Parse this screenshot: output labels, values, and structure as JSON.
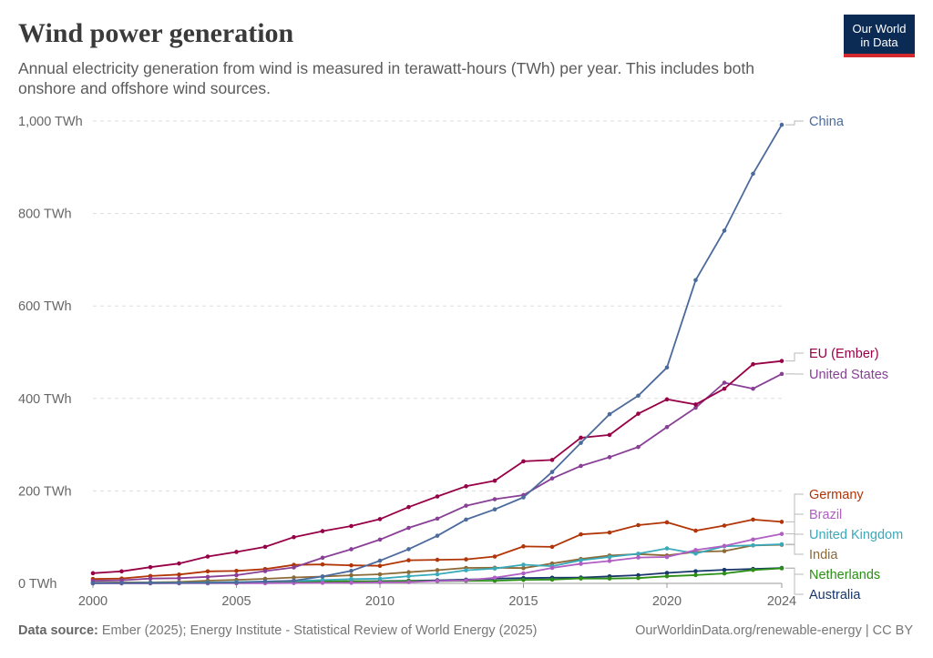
{
  "header": {
    "title": "Wind power generation",
    "subtitle": "Annual electricity generation from wind is measured in terawatt-hours (TWh) per year. This includes both onshore and offshore wind sources.",
    "logo_line1": "Our World",
    "logo_line2": "in Data"
  },
  "footer": {
    "source_label": "Data source:",
    "source_text": "Ember (2025); Energy Institute - Statistical Review of World Energy (2025)",
    "link": "OurWorldinData.org/renewable-energy | CC BY"
  },
  "chart_data": {
    "type": "line",
    "title": "Wind power generation",
    "xlabel": "",
    "ylabel": "TWh",
    "xlim": [
      2000,
      2024
    ],
    "ylim": [
      0,
      1000
    ],
    "y_ticks": [
      0,
      200,
      400,
      600,
      800,
      1000
    ],
    "y_tick_labels": [
      "0 TWh",
      "200 TWh",
      "400 TWh",
      "600 TWh",
      "800 TWh",
      "1,000 TWh"
    ],
    "x_ticks": [
      2000,
      2005,
      2010,
      2015,
      2020,
      2024
    ],
    "x_tick_labels": [
      "2000",
      "2005",
      "2010",
      "2015",
      "2020",
      "2024"
    ],
    "grid": true,
    "x": [
      2000,
      2001,
      2002,
      2003,
      2004,
      2005,
      2006,
      2007,
      2008,
      2009,
      2010,
      2011,
      2012,
      2013,
      2014,
      2015,
      2016,
      2017,
      2018,
      2019,
      2020,
      2021,
      2022,
      2023,
      2024
    ],
    "series": [
      {
        "name": "China",
        "color": "#4c6a9c",
        "values": [
          0.6,
          0.7,
          0.9,
          1,
          1.3,
          2,
          4,
          6,
          15,
          27,
          49,
          74,
          103,
          138,
          160,
          186,
          241,
          304,
          366,
          406,
          467,
          656,
          763,
          886,
          992
        ]
      },
      {
        "name": "EU (Ember)",
        "color": "#970046",
        "values": [
          22,
          26,
          35,
          43,
          58,
          68,
          79,
          100,
          113,
          124,
          139,
          165,
          188,
          210,
          222,
          264,
          267,
          315,
          321,
          367,
          398,
          387,
          421,
          474,
          481
        ]
      },
      {
        "name": "United States",
        "color": "#883f95",
        "values": [
          5.6,
          6.7,
          10.4,
          11.2,
          14.1,
          17.8,
          26.6,
          34.5,
          55.4,
          73.9,
          94.7,
          120,
          140,
          168,
          182,
          191,
          227,
          254,
          273,
          295,
          338,
          380,
          434,
          421,
          453
        ]
      },
      {
        "name": "Germany",
        "color": "#b13507",
        "values": [
          9.5,
          10.5,
          16,
          19,
          26,
          27,
          31,
          40,
          41,
          39,
          38,
          50,
          51,
          52,
          58,
          80,
          79,
          106,
          110,
          126,
          132,
          114,
          125,
          138,
          133
        ]
      },
      {
        "name": "Brazil",
        "color": "#b05ec3",
        "values": [
          0,
          0,
          0.1,
          0.1,
          0.1,
          0.1,
          0.2,
          0.7,
          1.2,
          1.2,
          2.2,
          2.7,
          5.1,
          6.6,
          12.2,
          21.6,
          33.5,
          42.4,
          48.5,
          56,
          57,
          72,
          81,
          95,
          107
        ]
      },
      {
        "name": "United Kingdom",
        "color": "#38aaba",
        "values": [
          0.9,
          1,
          1.3,
          1.3,
          1.9,
          2.9,
          4.2,
          5.3,
          7.1,
          9.3,
          10.2,
          15.5,
          19.6,
          28.4,
          32,
          40.3,
          37.3,
          50,
          57.1,
          64.1,
          75.6,
          64.5,
          80.3,
          82.3,
          84.6
        ]
      },
      {
        "name": "India",
        "color": "#8c6a37",
        "values": [
          1.7,
          2.1,
          2.2,
          3.2,
          6,
          7.7,
          9.9,
          12.8,
          14.7,
          17.6,
          19.7,
          24.2,
          28.6,
          33.4,
          33.8,
          33,
          43,
          52.7,
          60.3,
          63.3,
          60.4,
          68.1,
          69.8,
          82.1,
          83.4
        ]
      },
      {
        "name": "Netherlands",
        "color": "#2a8f14",
        "values": [
          0.8,
          0.8,
          1,
          1.3,
          1.9,
          2.1,
          2.7,
          3.5,
          4.3,
          4.6,
          4,
          5.1,
          5,
          5.6,
          5.8,
          7.6,
          8.2,
          10.6,
          10.5,
          11.5,
          15.3,
          18,
          21.4,
          29,
          32.5
        ]
      },
      {
        "name": "Australia",
        "color": "#18366b",
        "values": [
          0.1,
          0.2,
          0.4,
          0.7,
          0.9,
          1.7,
          2.6,
          3.1,
          3.8,
          4.3,
          5,
          5.8,
          6.7,
          8.1,
          10.3,
          11.5,
          12.2,
          12.6,
          15.2,
          17.7,
          22.6,
          26.3,
          29.3,
          31.2,
          33.3
        ]
      }
    ]
  }
}
